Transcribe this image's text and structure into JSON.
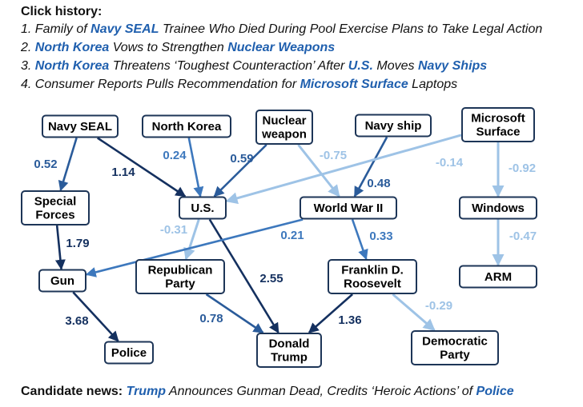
{
  "click_history": {
    "title": "Click history:",
    "items": [
      [
        {
          "t": "1. Family of "
        },
        {
          "t": "Navy SEAL",
          "e": true
        },
        {
          "t": " Trainee Who Died During Pool Exercise Plans to Take Legal Action"
        }
      ],
      [
        {
          "t": "2. "
        },
        {
          "t": "North Korea",
          "e": true
        },
        {
          "t": " Vows to Strengthen "
        },
        {
          "t": "Nuclear Weapons",
          "e": true
        }
      ],
      [
        {
          "t": "3. "
        },
        {
          "t": "North Korea",
          "e": true
        },
        {
          "t": " Threatens ‘Toughest Counteraction’ After "
        },
        {
          "t": "U.S.",
          "e": true
        },
        {
          "t": " Moves "
        },
        {
          "t": "Navy Ships",
          "e": true
        }
      ],
      [
        {
          "t": "4. Consumer Reports Pulls Recommendation for "
        },
        {
          "t": "Microsoft Surface",
          "e": true
        },
        {
          "t": " Laptops"
        }
      ]
    ]
  },
  "graph": {
    "nodes": [
      {
        "id": "navy_seal",
        "lines": [
          "Navy SEAL"
        ]
      },
      {
        "id": "north_korea",
        "lines": [
          "North Korea"
        ]
      },
      {
        "id": "nuclear_weapon",
        "lines": [
          "Nuclear",
          "weapon"
        ]
      },
      {
        "id": "navy_ship",
        "lines": [
          "Navy ship"
        ]
      },
      {
        "id": "microsoft_surface",
        "lines": [
          "Microsoft",
          "Surface"
        ]
      },
      {
        "id": "special_forces",
        "lines": [
          "Special",
          "Forces"
        ]
      },
      {
        "id": "us",
        "lines": [
          "U.S."
        ]
      },
      {
        "id": "ww2",
        "lines": [
          "World War II"
        ]
      },
      {
        "id": "windows",
        "lines": [
          "Windows"
        ]
      },
      {
        "id": "gun",
        "lines": [
          "Gun"
        ]
      },
      {
        "id": "republican",
        "lines": [
          "Republican",
          "Party"
        ]
      },
      {
        "id": "fdr",
        "lines": [
          "Franklin D.",
          "Roosevelt"
        ]
      },
      {
        "id": "arm",
        "lines": [
          "ARM"
        ]
      },
      {
        "id": "police",
        "lines": [
          "Police"
        ]
      },
      {
        "id": "trump",
        "lines": [
          "Donald",
          "Trump"
        ]
      },
      {
        "id": "democratic",
        "lines": [
          "Democratic",
          "Party"
        ]
      }
    ],
    "edges": [
      {
        "from": "navy_seal",
        "to": "special_forces",
        "weight": "0.52",
        "strength": "dark"
      },
      {
        "from": "navy_seal",
        "to": "us",
        "weight": "1.14",
        "strength": "darkest"
      },
      {
        "from": "north_korea",
        "to": "us",
        "weight": "0.24",
        "strength": "medium"
      },
      {
        "from": "nuclear_weapon",
        "to": "us",
        "weight": "0.59",
        "strength": "dark"
      },
      {
        "from": "nuclear_weapon",
        "to": "ww2",
        "weight": "-0.75",
        "strength": "light"
      },
      {
        "from": "navy_ship",
        "to": "ww2",
        "weight": "0.48",
        "strength": "dark"
      },
      {
        "from": "microsoft_surface",
        "to": "us",
        "weight": "-0.14",
        "strength": "light"
      },
      {
        "from": "microsoft_surface",
        "to": "windows",
        "weight": "-0.92",
        "strength": "light"
      },
      {
        "from": "special_forces",
        "to": "gun",
        "weight": "1.79",
        "strength": "darkest"
      },
      {
        "from": "us",
        "to": "republican",
        "weight": "-0.31",
        "strength": "light"
      },
      {
        "from": "us",
        "to": "trump",
        "weight": "2.55",
        "strength": "darkest"
      },
      {
        "from": "ww2",
        "to": "gun",
        "weight": "0.21",
        "strength": "medium"
      },
      {
        "from": "ww2",
        "to": "fdr",
        "weight": "0.33",
        "strength": "medium"
      },
      {
        "from": "windows",
        "to": "arm",
        "weight": "-0.47",
        "strength": "light"
      },
      {
        "from": "gun",
        "to": "police",
        "weight": "3.68",
        "strength": "darkest"
      },
      {
        "from": "republican",
        "to": "trump",
        "weight": "0.78",
        "strength": "dark"
      },
      {
        "from": "fdr",
        "to": "trump",
        "weight": "1.36",
        "strength": "darkest"
      },
      {
        "from": "fdr",
        "to": "democratic",
        "weight": "-0.29",
        "strength": "light"
      }
    ],
    "colors": {
      "darkest": "#14305f",
      "dark": "#2a5b9a",
      "medium": "#3d78bd",
      "light": "#9ec3e6",
      "node_border": "#1d3557",
      "entity_text": "#1f5fae"
    }
  },
  "candidate_news": {
    "title": "Candidate news:",
    "parts": [
      {
        "t": "Trump",
        "e": true
      },
      {
        "t": " Announces Gunman Dead, Credits ‘Heroic Actions’ of "
      },
      {
        "t": "Police",
        "e": true
      }
    ]
  }
}
